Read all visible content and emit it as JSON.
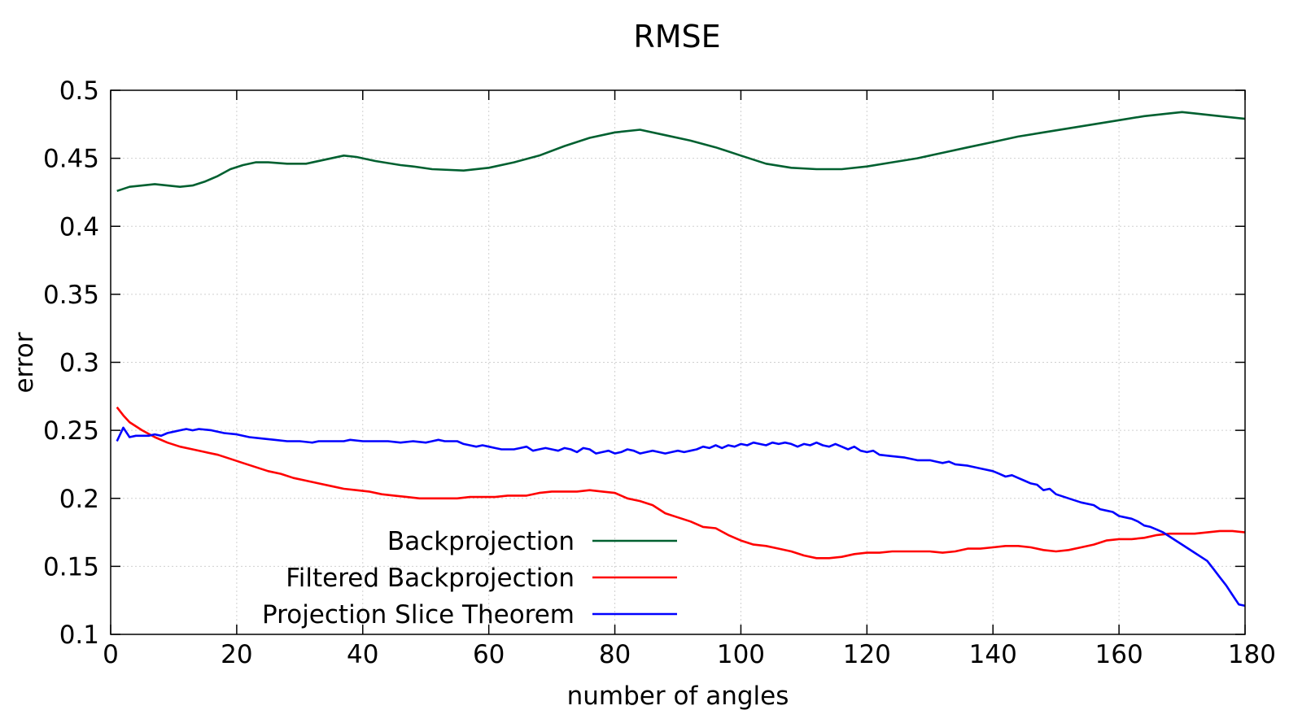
{
  "chart_data": {
    "type": "line",
    "title": "RMSE",
    "xlabel": "number of angles",
    "ylabel": "error",
    "xlim": [
      0,
      180
    ],
    "ylim": [
      0.1,
      0.5
    ],
    "xticks": [
      0,
      20,
      40,
      60,
      80,
      100,
      120,
      140,
      160,
      180
    ],
    "xtick_labels": [
      "0",
      "20",
      "40",
      "60",
      "80",
      "100",
      "120",
      "140",
      "160",
      "180"
    ],
    "yticks": [
      0.1,
      0.15,
      0.2,
      0.25,
      0.3,
      0.35,
      0.4,
      0.45,
      0.5
    ],
    "ytick_labels": [
      "0.1",
      "0.15",
      "0.2",
      "0.25",
      "0.3",
      "0.35",
      "0.4",
      "0.45",
      "0.5"
    ],
    "grid": true,
    "legend_position": "bottom-left",
    "series": [
      {
        "name": "Backprojection",
        "color": "#006030",
        "points": [
          [
            1,
            0.426
          ],
          [
            3,
            0.429
          ],
          [
            5,
            0.43
          ],
          [
            7,
            0.431
          ],
          [
            9,
            0.43
          ],
          [
            11,
            0.429
          ],
          [
            13,
            0.43
          ],
          [
            15,
            0.433
          ],
          [
            17,
            0.437
          ],
          [
            19,
            0.442
          ],
          [
            21,
            0.445
          ],
          [
            23,
            0.447
          ],
          [
            25,
            0.447
          ],
          [
            28,
            0.446
          ],
          [
            31,
            0.446
          ],
          [
            34,
            0.449
          ],
          [
            37,
            0.452
          ],
          [
            39,
            0.451
          ],
          [
            42,
            0.448
          ],
          [
            46,
            0.445
          ],
          [
            48,
            0.444
          ],
          [
            51,
            0.442
          ],
          [
            56,
            0.441
          ],
          [
            60,
            0.443
          ],
          [
            64,
            0.447
          ],
          [
            68,
            0.452
          ],
          [
            72,
            0.459
          ],
          [
            76,
            0.465
          ],
          [
            80,
            0.469
          ],
          [
            84,
            0.471
          ],
          [
            88,
            0.467
          ],
          [
            92,
            0.463
          ],
          [
            96,
            0.458
          ],
          [
            100,
            0.452
          ],
          [
            104,
            0.446
          ],
          [
            108,
            0.443
          ],
          [
            112,
            0.442
          ],
          [
            116,
            0.442
          ],
          [
            120,
            0.444
          ],
          [
            124,
            0.447
          ],
          [
            128,
            0.45
          ],
          [
            132,
            0.454
          ],
          [
            136,
            0.458
          ],
          [
            140,
            0.462
          ],
          [
            144,
            0.466
          ],
          [
            148,
            0.469
          ],
          [
            152,
            0.472
          ],
          [
            156,
            0.475
          ],
          [
            160,
            0.478
          ],
          [
            164,
            0.481
          ],
          [
            168,
            0.483
          ],
          [
            170,
            0.484
          ],
          [
            172,
            0.483
          ],
          [
            176,
            0.481
          ],
          [
            180,
            0.479
          ]
        ]
      },
      {
        "name": "Filtered Backprojection",
        "color": "#ff0000",
        "points": [
          [
            1,
            0.267
          ],
          [
            2,
            0.261
          ],
          [
            3,
            0.256
          ],
          [
            5,
            0.25
          ],
          [
            7,
            0.245
          ],
          [
            9,
            0.241
          ],
          [
            11,
            0.238
          ],
          [
            13,
            0.236
          ],
          [
            15,
            0.234
          ],
          [
            17,
            0.232
          ],
          [
            19,
            0.229
          ],
          [
            21,
            0.226
          ],
          [
            23,
            0.223
          ],
          [
            25,
            0.22
          ],
          [
            27,
            0.218
          ],
          [
            29,
            0.215
          ],
          [
            31,
            0.213
          ],
          [
            33,
            0.211
          ],
          [
            35,
            0.209
          ],
          [
            37,
            0.207
          ],
          [
            39,
            0.206
          ],
          [
            41,
            0.205
          ],
          [
            43,
            0.203
          ],
          [
            45,
            0.202
          ],
          [
            47,
            0.201
          ],
          [
            49,
            0.2
          ],
          [
            51,
            0.2
          ],
          [
            53,
            0.2
          ],
          [
            55,
            0.2
          ],
          [
            57,
            0.201
          ],
          [
            59,
            0.201
          ],
          [
            61,
            0.201
          ],
          [
            63,
            0.202
          ],
          [
            66,
            0.202
          ],
          [
            68,
            0.204
          ],
          [
            70,
            0.205
          ],
          [
            72,
            0.205
          ],
          [
            74,
            0.205
          ],
          [
            76,
            0.206
          ],
          [
            78,
            0.205
          ],
          [
            80,
            0.204
          ],
          [
            82,
            0.2
          ],
          [
            84,
            0.198
          ],
          [
            86,
            0.195
          ],
          [
            88,
            0.189
          ],
          [
            90,
            0.186
          ],
          [
            92,
            0.183
          ],
          [
            94,
            0.179
          ],
          [
            96,
            0.178
          ],
          [
            98,
            0.173
          ],
          [
            100,
            0.169
          ],
          [
            102,
            0.166
          ],
          [
            104,
            0.165
          ],
          [
            106,
            0.163
          ],
          [
            108,
            0.161
          ],
          [
            110,
            0.158
          ],
          [
            112,
            0.156
          ],
          [
            114,
            0.156
          ],
          [
            116,
            0.157
          ],
          [
            118,
            0.159
          ],
          [
            120,
            0.16
          ],
          [
            122,
            0.16
          ],
          [
            124,
            0.161
          ],
          [
            126,
            0.161
          ],
          [
            128,
            0.161
          ],
          [
            130,
            0.161
          ],
          [
            132,
            0.16
          ],
          [
            134,
            0.161
          ],
          [
            136,
            0.163
          ],
          [
            138,
            0.163
          ],
          [
            140,
            0.164
          ],
          [
            142,
            0.165
          ],
          [
            144,
            0.165
          ],
          [
            146,
            0.164
          ],
          [
            148,
            0.162
          ],
          [
            150,
            0.161
          ],
          [
            152,
            0.162
          ],
          [
            154,
            0.164
          ],
          [
            156,
            0.166
          ],
          [
            158,
            0.169
          ],
          [
            160,
            0.17
          ],
          [
            162,
            0.17
          ],
          [
            164,
            0.171
          ],
          [
            166,
            0.173
          ],
          [
            168,
            0.174
          ],
          [
            170,
            0.174
          ],
          [
            172,
            0.174
          ],
          [
            174,
            0.175
          ],
          [
            176,
            0.176
          ],
          [
            178,
            0.176
          ],
          [
            180,
            0.175
          ]
        ]
      },
      {
        "name": "Projection Slice Theorem",
        "color": "#0000ff",
        "points": [
          [
            1,
            0.242
          ],
          [
            2,
            0.252
          ],
          [
            3,
            0.245
          ],
          [
            4,
            0.246
          ],
          [
            6,
            0.246
          ],
          [
            7,
            0.247
          ],
          [
            8,
            0.246
          ],
          [
            9,
            0.248
          ],
          [
            10,
            0.249
          ],
          [
            11,
            0.25
          ],
          [
            12,
            0.251
          ],
          [
            13,
            0.25
          ],
          [
            14,
            0.251
          ],
          [
            16,
            0.25
          ],
          [
            18,
            0.248
          ],
          [
            20,
            0.247
          ],
          [
            22,
            0.245
          ],
          [
            24,
            0.244
          ],
          [
            26,
            0.243
          ],
          [
            28,
            0.242
          ],
          [
            30,
            0.242
          ],
          [
            32,
            0.241
          ],
          [
            33,
            0.242
          ],
          [
            35,
            0.242
          ],
          [
            37,
            0.242
          ],
          [
            38,
            0.243
          ],
          [
            40,
            0.242
          ],
          [
            42,
            0.242
          ],
          [
            44,
            0.242
          ],
          [
            46,
            0.241
          ],
          [
            48,
            0.242
          ],
          [
            50,
            0.241
          ],
          [
            51,
            0.242
          ],
          [
            52,
            0.243
          ],
          [
            53,
            0.242
          ],
          [
            55,
            0.242
          ],
          [
            56,
            0.24
          ],
          [
            57,
            0.239
          ],
          [
            58,
            0.238
          ],
          [
            59,
            0.239
          ],
          [
            60,
            0.238
          ],
          [
            61,
            0.237
          ],
          [
            62,
            0.236
          ],
          [
            64,
            0.236
          ],
          [
            65,
            0.237
          ],
          [
            66,
            0.238
          ],
          [
            67,
            0.235
          ],
          [
            68,
            0.236
          ],
          [
            69,
            0.237
          ],
          [
            70,
            0.236
          ],
          [
            71,
            0.235
          ],
          [
            72,
            0.237
          ],
          [
            73,
            0.236
          ],
          [
            74,
            0.234
          ],
          [
            75,
            0.237
          ],
          [
            76,
            0.236
          ],
          [
            77,
            0.233
          ],
          [
            78,
            0.234
          ],
          [
            79,
            0.235
          ],
          [
            80,
            0.233
          ],
          [
            81,
            0.234
          ],
          [
            82,
            0.236
          ],
          [
            83,
            0.235
          ],
          [
            84,
            0.233
          ],
          [
            85,
            0.234
          ],
          [
            86,
            0.235
          ],
          [
            87,
            0.234
          ],
          [
            88,
            0.233
          ],
          [
            89,
            0.234
          ],
          [
            90,
            0.235
          ],
          [
            91,
            0.234
          ],
          [
            92,
            0.235
          ],
          [
            93,
            0.236
          ],
          [
            94,
            0.238
          ],
          [
            95,
            0.237
          ],
          [
            96,
            0.239
          ],
          [
            97,
            0.237
          ],
          [
            98,
            0.239
          ],
          [
            99,
            0.238
          ],
          [
            100,
            0.24
          ],
          [
            101,
            0.239
          ],
          [
            102,
            0.241
          ],
          [
            103,
            0.24
          ],
          [
            104,
            0.239
          ],
          [
            105,
            0.241
          ],
          [
            106,
            0.24
          ],
          [
            107,
            0.241
          ],
          [
            108,
            0.24
          ],
          [
            109,
            0.238
          ],
          [
            110,
            0.24
          ],
          [
            111,
            0.239
          ],
          [
            112,
            0.241
          ],
          [
            113,
            0.239
          ],
          [
            114,
            0.238
          ],
          [
            115,
            0.24
          ],
          [
            116,
            0.238
          ],
          [
            117,
            0.236
          ],
          [
            118,
            0.238
          ],
          [
            119,
            0.235
          ],
          [
            120,
            0.234
          ],
          [
            121,
            0.235
          ],
          [
            122,
            0.232
          ],
          [
            124,
            0.231
          ],
          [
            126,
            0.23
          ],
          [
            128,
            0.228
          ],
          [
            130,
            0.228
          ],
          [
            131,
            0.227
          ],
          [
            132,
            0.226
          ],
          [
            133,
            0.227
          ],
          [
            134,
            0.225
          ],
          [
            136,
            0.224
          ],
          [
            138,
            0.222
          ],
          [
            140,
            0.22
          ],
          [
            141,
            0.218
          ],
          [
            142,
            0.216
          ],
          [
            143,
            0.217
          ],
          [
            144,
            0.215
          ],
          [
            145,
            0.213
          ],
          [
            146,
            0.211
          ],
          [
            147,
            0.21
          ],
          [
            148,
            0.206
          ],
          [
            149,
            0.207
          ],
          [
            150,
            0.203
          ],
          [
            152,
            0.2
          ],
          [
            154,
            0.197
          ],
          [
            156,
            0.195
          ],
          [
            157,
            0.192
          ],
          [
            158,
            0.191
          ],
          [
            159,
            0.19
          ],
          [
            160,
            0.187
          ],
          [
            161,
            0.186
          ],
          [
            162,
            0.185
          ],
          [
            163,
            0.183
          ],
          [
            164,
            0.18
          ],
          [
            165,
            0.179
          ],
          [
            166,
            0.177
          ],
          [
            167,
            0.175
          ],
          [
            168,
            0.172
          ],
          [
            169,
            0.169
          ],
          [
            170,
            0.166
          ],
          [
            171,
            0.163
          ],
          [
            172,
            0.16
          ],
          [
            173,
            0.157
          ],
          [
            174,
            0.154
          ],
          [
            175,
            0.148
          ],
          [
            176,
            0.142
          ],
          [
            177,
            0.136
          ],
          [
            178,
            0.129
          ],
          [
            179,
            0.122
          ],
          [
            180,
            0.121
          ]
        ]
      }
    ]
  }
}
